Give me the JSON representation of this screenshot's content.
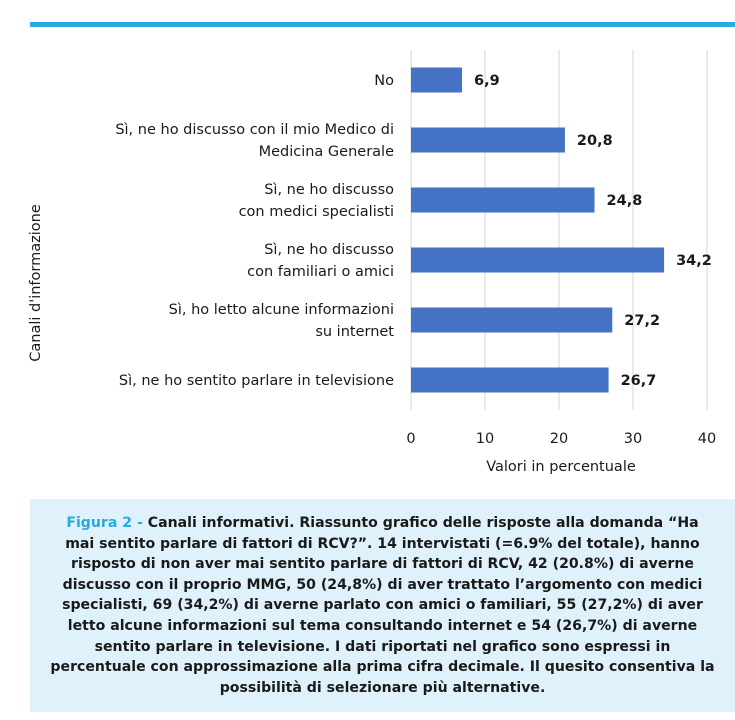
{
  "chart_data": {
    "type": "bar",
    "orientation": "horizontal",
    "categories": [
      [
        "No"
      ],
      [
        "Sì, ne ho discusso con il mio Medico di",
        "Medicina Generale"
      ],
      [
        "Sì, ne ho discusso",
        "con medici specialisti"
      ],
      [
        "Sì, ne ho discusso",
        "con familiari o amici"
      ],
      [
        "Sì, ho letto alcune informazioni",
        "su internet"
      ],
      [
        "Sì, ne ho sentito parlare in televisione"
      ]
    ],
    "values": [
      6.9,
      20.8,
      24.8,
      34.2,
      27.2,
      26.7
    ],
    "value_labels": [
      "6,9",
      "20,8",
      "24,8",
      "34,2",
      "27,2",
      "26,7"
    ],
    "xlabel": "Valori in percentuale",
    "ylabel": "Canali d'informazione",
    "xlim": [
      0,
      40
    ],
    "xticks": [
      "0",
      "10",
      "20",
      "30",
      "40"
    ],
    "grid": "vertical",
    "bar_color": "#4472c4"
  },
  "caption": {
    "label": "Figura 2 -",
    "text": " Canali informativi. Riassunto grafico delle risposte alla domanda “Ha mai sentito parlare di fattori di RCV?”. 14 intervistati (=6.9% del totale), hanno risposto di non aver mai sentito parlare di fattori di RCV, 42 (20.8%) di averne discusso con il proprio MMG, 50 (24,8%) di aver trattato l’argomento con medici specialisti, 69 (34,2%) di averne parlato con amici o familiari, 55 (27,2%) di aver letto alcune informazioni sul tema consultando internet e 54 (26,7%) di averne sentito parlare in televisione. I dati riportati nel grafico sono espressi in percentuale con approssimazione alla prima cifra decimale. Il quesito consentiva la possibilità di selezionare più alternative."
  },
  "colors": {
    "accent": "#2aa8e0",
    "caption_bg": "#dff1fb"
  }
}
